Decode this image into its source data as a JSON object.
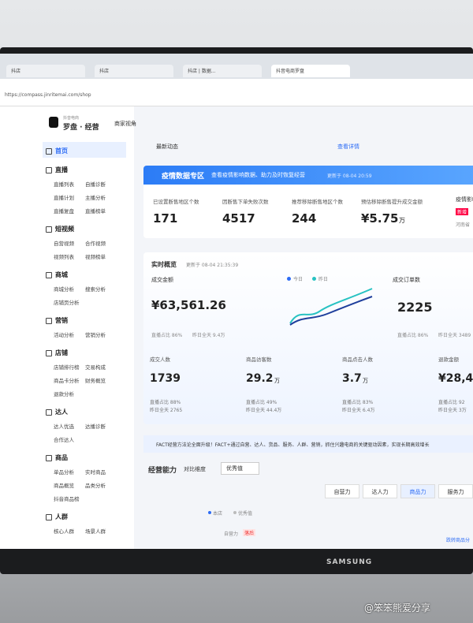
{
  "browser": {
    "tabs": [
      "抖店",
      "抖店",
      "抖店 | 数据...",
      "抖音电商罗盘"
    ],
    "url": "https://compass.jinritemai.com/shop"
  },
  "brand": {
    "logo": "抖音电商",
    "name": "罗盘 · 经营",
    "view": "商家视角"
  },
  "sidebar": [
    {
      "title": "首页",
      "items": []
    },
    {
      "title": "直播",
      "items": [
        "直播列表",
        "自播诊断",
        "直播计划",
        "主播分析",
        "直播复盘",
        "直播榜单"
      ]
    },
    {
      "title": "短视频",
      "items": [
        "自营视频",
        "合作视频",
        "视频列表",
        "视频榜单"
      ]
    },
    {
      "title": "商城",
      "items": [
        "商城分析",
        "搜索分析",
        "店铺页分析"
      ]
    },
    {
      "title": "营销",
      "items": [
        "活动分析",
        "营销分析"
      ]
    },
    {
      "title": "店铺",
      "items": [
        "店铺排行榜",
        "交易构成",
        "商品卡分析",
        "财务概览",
        "退款分析"
      ]
    },
    {
      "title": "达人",
      "items": [
        "达人优选",
        "达播诊断",
        "合作达人"
      ]
    },
    {
      "title": "商品",
      "items": [
        "单品分析",
        "实时商品",
        "商品概览",
        "品类分析",
        "抖音商品榜"
      ]
    },
    {
      "title": "人群",
      "items": [
        "核心人群",
        "场景人群"
      ]
    }
  ],
  "news": {
    "label": "最新动态",
    "link": "查看详情"
  },
  "epidemic": {
    "title": "疫情数据专区",
    "subtitle": "查看疫情影响数据、助力及时恢复经营",
    "updated": "更新于 08-04 20:59",
    "metrics": [
      {
        "label": "已设置断售地区个数",
        "value": "171",
        "unit": ""
      },
      {
        "label": "因断售下单失败次数",
        "value": "4517",
        "unit": ""
      },
      {
        "label": "推荐移除断售地区个数",
        "value": "244",
        "unit": ""
      },
      {
        "label": "预估移除断售提升成交金额",
        "value": "¥5.75",
        "unit": "万"
      }
    ],
    "side": {
      "label": "疫情影响",
      "tag": "新增",
      "note": "河南省"
    }
  },
  "realtime": {
    "title": "实时概览",
    "updated": "更新于 08-04 21:35:39",
    "legend": [
      "今日",
      "昨日"
    ],
    "gmv": {
      "label": "成交金额",
      "value": "¥63,561.26",
      "notes": [
        "直播占比 86%",
        "昨日全天 9.4万"
      ]
    },
    "orders": {
      "label": "成交订单数",
      "value": "2225",
      "notes": [
        "直播占比 86%",
        "昨日全天 3489"
      ]
    },
    "metrics": [
      {
        "label": "成交人数",
        "value": "1739",
        "unit": "",
        "notes": [
          "直播占比 88%",
          "昨日全天 2765"
        ]
      },
      {
        "label": "商品访客数",
        "value": "29.2",
        "unit": "万",
        "notes": [
          "直播占比 49%",
          "昨日全天 44.4万"
        ]
      },
      {
        "label": "商品点击人数",
        "value": "3.7",
        "unit": "万",
        "notes": [
          "直播占比 83%",
          "昨日全天 6.4万"
        ]
      },
      {
        "label": "退款金额",
        "value": "¥28,4",
        "unit": "",
        "notes": [
          "直播占比 92",
          "昨日全天 3万"
        ]
      }
    ]
  },
  "notice": "FACT经营方法论全面升级！FACT+通过自营、达人、货品、服务、人群、营销，抓住兴趣电商的关键驱动因素，实现长期高效增长",
  "ability": {
    "title": "经营能力",
    "compare_label": "对比维度",
    "compare_value": "优秀值",
    "tabs": [
      "自营力",
      "达人力",
      "商品力",
      "服务力"
    ],
    "legend": [
      "本店",
      "优秀值"
    ],
    "axis_label": "自营力",
    "tag": "落后",
    "right_label": "跌转商品分"
  },
  "monitor": {
    "brand": "SAMSUNG"
  },
  "watermark": "@笨笨熊爱分享"
}
